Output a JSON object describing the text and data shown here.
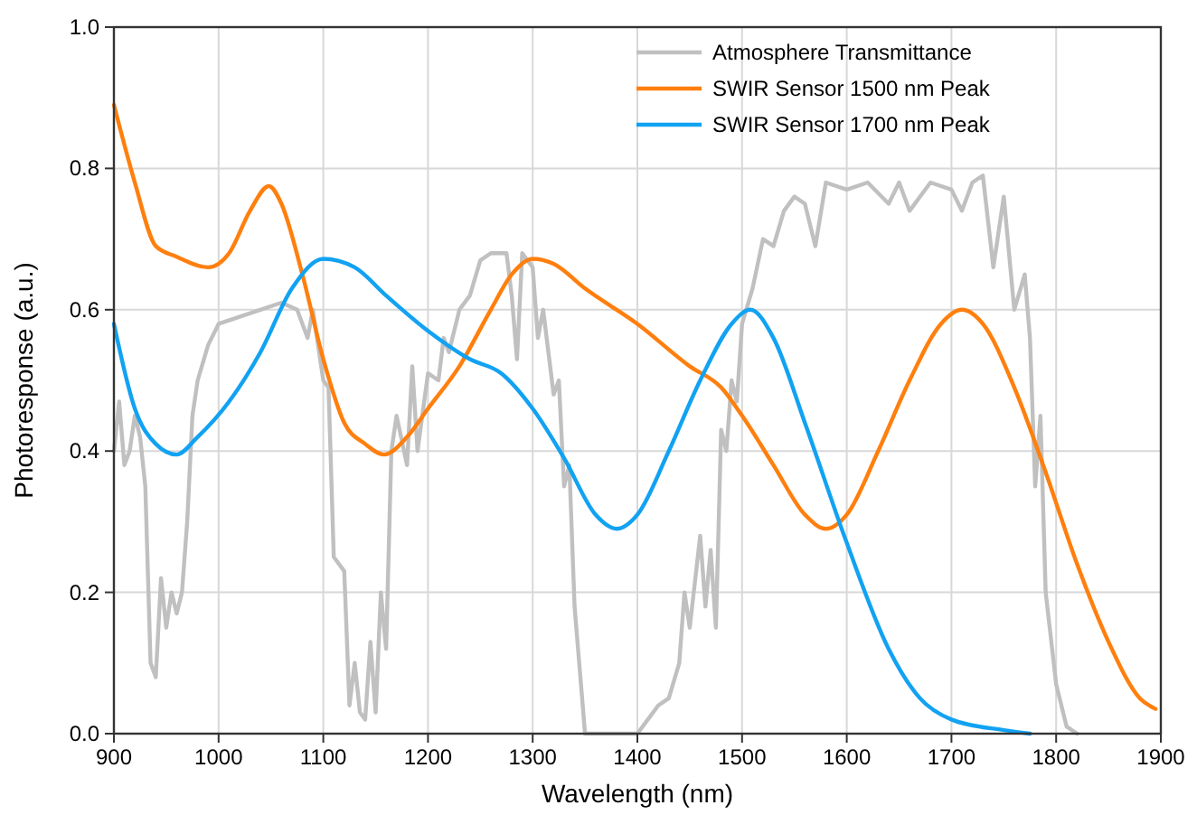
{
  "chart_data": {
    "type": "line",
    "xlabel": "Wavelength (nm)",
    "ylabel": "Photoresponse (a.u.)",
    "xlim": [
      900,
      1900
    ],
    "xticks": [
      900,
      1000,
      1100,
      1200,
      1300,
      1400,
      1500,
      1600,
      1700,
      1800,
      1900
    ],
    "ylim": [
      0,
      1
    ],
    "yticks": [
      {
        "value": 0,
        "label": "0.0"
      },
      0.2,
      0.4,
      0.6,
      0.8,
      {
        "value": 1,
        "label": "1.0"
      }
    ],
    "grid": true,
    "legend": "top right",
    "marker": "none",
    "line_style": "solid",
    "series": [
      {
        "name": "Atmosphere Transmittance",
        "color": "#c0c0c0",
        "x": [
          900,
          905,
          910,
          915,
          920,
          925,
          930,
          935,
          940,
          945,
          950,
          955,
          960,
          965,
          970,
          975,
          980,
          990,
          1000,
          1020,
          1040,
          1060,
          1075,
          1085,
          1090,
          1100,
          1105,
          1110,
          1120,
          1125,
          1130,
          1135,
          1140,
          1145,
          1150,
          1155,
          1160,
          1165,
          1170,
          1180,
          1185,
          1190,
          1200,
          1210,
          1215,
          1220,
          1230,
          1240,
          1250,
          1260,
          1275,
          1280,
          1285,
          1290,
          1300,
          1305,
          1310,
          1320,
          1325,
          1330,
          1335,
          1340,
          1345,
          1350,
          1400,
          1410,
          1420,
          1430,
          1440,
          1445,
          1450,
          1460,
          1465,
          1470,
          1475,
          1480,
          1485,
          1490,
          1495,
          1500,
          1510,
          1520,
          1530,
          1540,
          1550,
          1560,
          1570,
          1580,
          1600,
          1620,
          1640,
          1650,
          1660,
          1680,
          1700,
          1710,
          1720,
          1730,
          1740,
          1750,
          1760,
          1770,
          1775,
          1780,
          1785,
          1790,
          1800,
          1810,
          1820
        ],
        "values": [
          0.4,
          0.47,
          0.38,
          0.4,
          0.45,
          0.42,
          0.35,
          0.1,
          0.08,
          0.22,
          0.15,
          0.2,
          0.17,
          0.2,
          0.3,
          0.45,
          0.5,
          0.55,
          0.58,
          0.59,
          0.6,
          0.61,
          0.6,
          0.56,
          0.6,
          0.5,
          0.49,
          0.25,
          0.23,
          0.04,
          0.1,
          0.03,
          0.02,
          0.13,
          0.03,
          0.2,
          0.12,
          0.4,
          0.45,
          0.38,
          0.52,
          0.4,
          0.51,
          0.5,
          0.56,
          0.54,
          0.6,
          0.62,
          0.67,
          0.68,
          0.68,
          0.62,
          0.53,
          0.68,
          0.66,
          0.56,
          0.6,
          0.48,
          0.5,
          0.35,
          0.38,
          0.18,
          0.09,
          0,
          0,
          0.02,
          0.04,
          0.05,
          0.1,
          0.2,
          0.15,
          0.28,
          0.18,
          0.26,
          0.15,
          0.43,
          0.4,
          0.5,
          0.47,
          0.58,
          0.63,
          0.7,
          0.69,
          0.74,
          0.76,
          0.75,
          0.69,
          0.78,
          0.77,
          0.78,
          0.75,
          0.78,
          0.74,
          0.78,
          0.77,
          0.74,
          0.78,
          0.79,
          0.66,
          0.76,
          0.6,
          0.65,
          0.56,
          0.35,
          0.45,
          0.2,
          0.07,
          0.01,
          0
        ]
      },
      {
        "name": "SWIR Sensor 1500 nm Peak",
        "color": "#ff7f0e",
        "x": [
          900,
          920,
          940,
          960,
          990,
          1010,
          1030,
          1048,
          1060,
          1080,
          1100,
          1120,
          1140,
          1158,
          1180,
          1200,
          1230,
          1260,
          1280,
          1300,
          1320,
          1350,
          1400,
          1450,
          1480,
          1500,
          1530,
          1560,
          1580,
          1600,
          1630,
          1660,
          1690,
          1710,
          1730,
          1760,
          1790,
          1820,
          1850,
          1880,
          1895
        ],
        "values": [
          0.89,
          0.78,
          0.69,
          0.675,
          0.66,
          0.68,
          0.74,
          0.775,
          0.75,
          0.65,
          0.53,
          0.44,
          0.41,
          0.395,
          0.42,
          0.46,
          0.52,
          0.6,
          0.65,
          0.672,
          0.665,
          0.63,
          0.58,
          0.52,
          0.49,
          0.45,
          0.38,
          0.31,
          0.29,
          0.31,
          0.4,
          0.5,
          0.58,
          0.6,
          0.58,
          0.49,
          0.37,
          0.24,
          0.13,
          0.05,
          0.035
        ]
      },
      {
        "name": "SWIR Sensor 1700 nm Peak",
        "color": "#12a2f2",
        "x": [
          900,
          920,
          940,
          960,
          980,
          1010,
          1040,
          1070,
          1100,
          1130,
          1160,
          1200,
          1240,
          1270,
          1300,
          1330,
          1360,
          1380,
          1400,
          1430,
          1460,
          1490,
          1508,
          1530,
          1560,
          1600,
          1640,
          1670,
          1700,
          1750,
          1775
        ],
        "values": [
          0.58,
          0.46,
          0.41,
          0.395,
          0.42,
          0.47,
          0.54,
          0.63,
          0.672,
          0.66,
          0.62,
          0.57,
          0.53,
          0.51,
          0.46,
          0.39,
          0.31,
          0.29,
          0.31,
          0.4,
          0.5,
          0.58,
          0.6,
          0.56,
          0.44,
          0.27,
          0.12,
          0.05,
          0.02,
          0.005,
          0
        ]
      }
    ]
  }
}
